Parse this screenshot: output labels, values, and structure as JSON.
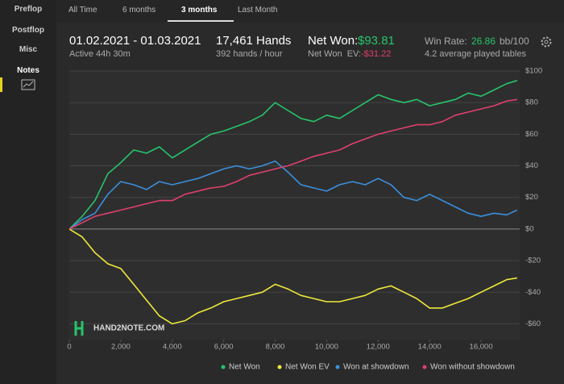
{
  "sidebar": {
    "items": [
      "Preflop",
      "Postflop",
      "Misc",
      "Notes"
    ]
  },
  "tabs": {
    "items": [
      "All Time",
      "6 months",
      "3 months",
      "Last Month"
    ],
    "active": 2
  },
  "stats": {
    "period": "01.02.2021 - 01.03.2021",
    "active": "Active 44h 30m",
    "hands": "17,461 Hands",
    "rate": "392 hands / hour",
    "net_won_label": "Net Won:",
    "net_won_value": "$93.81",
    "ev_label": "Net Won  EV:",
    "ev_value": "-$31.22",
    "win_rate_label": "Win Rate:",
    "win_rate_value": "26.86",
    "win_rate_unit": "bb/100",
    "tables": "4.2 average played tables"
  },
  "chart_data": {
    "type": "line",
    "watermark": "HAND2NOTE.COM",
    "x": [
      0,
      500,
      1000,
      1500,
      2000,
      2500,
      3000,
      3500,
      4000,
      4500,
      5000,
      5500,
      6000,
      6500,
      7000,
      7500,
      8000,
      8500,
      9000,
      9500,
      10000,
      10500,
      11000,
      11500,
      12000,
      12500,
      13000,
      13500,
      14000,
      14500,
      15000,
      15500,
      16000,
      16500,
      17000,
      17400
    ],
    "xlim": [
      0,
      17500
    ],
    "xticks": [
      0,
      {
        "value": 2000,
        "label": "2,000"
      },
      {
        "value": 4000,
        "label": "4,000"
      },
      {
        "value": 6000,
        "label": "6,000"
      },
      {
        "value": 8000,
        "label": "8,000"
      },
      {
        "value": 10000,
        "label": "10,000"
      },
      {
        "value": 12000,
        "label": "12,000"
      },
      {
        "value": 14000,
        "label": "14,000"
      },
      {
        "value": 16000,
        "label": "16,000"
      }
    ],
    "ylim": [
      -70,
      100
    ],
    "yticks": [
      {
        "value": -60,
        "label": "-$60"
      },
      {
        "value": -40,
        "label": "-$40"
      },
      {
        "value": -20,
        "label": "-$20"
      },
      {
        "value": 0,
        "label": "$0"
      },
      {
        "value": 20,
        "label": "$20"
      },
      {
        "value": 40,
        "label": "$40"
      },
      {
        "value": 60,
        "label": "$60"
      },
      {
        "value": 80,
        "label": "$80"
      },
      {
        "value": 100,
        "label": "$100"
      }
    ],
    "grid": true,
    "series": [
      {
        "name": "Net Won",
        "color": "#27c46a",
        "values": [
          0,
          8,
          18,
          35,
          42,
          50,
          48,
          52,
          45,
          50,
          55,
          60,
          62,
          65,
          68,
          72,
          80,
          75,
          70,
          68,
          72,
          70,
          75,
          80,
          85,
          82,
          80,
          82,
          78,
          80,
          82,
          86,
          84,
          88,
          92,
          94
        ]
      },
      {
        "name": "Net Won  EV",
        "color": "#efe83a",
        "values": [
          0,
          -5,
          -15,
          -22,
          -25,
          -35,
          -45,
          -55,
          -60,
          -58,
          -53,
          -50,
          -46,
          -44,
          -42,
          -40,
          -35,
          -38,
          -42,
          -44,
          -46,
          -46,
          -44,
          -42,
          -38,
          -36,
          -40,
          -44,
          -50,
          -50,
          -47,
          -44,
          -40,
          -36,
          -32,
          -31
        ]
      },
      {
        "name": "Won at showdown",
        "color": "#3b8fdc",
        "values": [
          0,
          6,
          10,
          22,
          30,
          28,
          25,
          30,
          28,
          30,
          32,
          35,
          38,
          40,
          38,
          40,
          43,
          36,
          28,
          26,
          24,
          28,
          30,
          28,
          32,
          28,
          20,
          18,
          22,
          18,
          14,
          10,
          8,
          10,
          9,
          12
        ]
      },
      {
        "name": "Won without showdown",
        "color": "#e0406c",
        "values": [
          0,
          4,
          8,
          10,
          12,
          14,
          16,
          18,
          18,
          22,
          24,
          26,
          27,
          30,
          34,
          36,
          38,
          40,
          43,
          46,
          48,
          50,
          54,
          57,
          60,
          62,
          64,
          66,
          66,
          68,
          72,
          74,
          76,
          78,
          81,
          82
        ]
      }
    ]
  }
}
